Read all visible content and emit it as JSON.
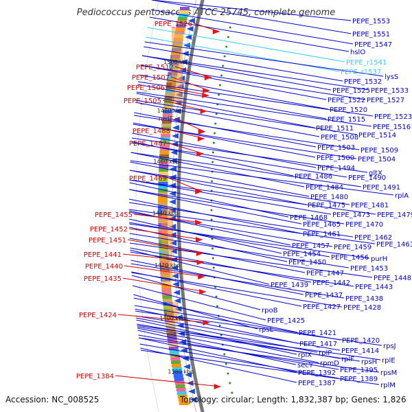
{
  "title": "Pediococcus pentosaceus ATCC 25745, complete genome",
  "footer": {
    "accession": "Accession: NC_008525",
    "topology": "Topology: circular; Length: 1,832,387 bp; Genes: 1,826"
  },
  "colors": {
    "forward_label": "#cc0000",
    "reverse_label": "#0000cc",
    "rna_label": "#33ccee",
    "backbone": "#777777",
    "tick": "#228822"
  },
  "scale_labels": [
    "1500 kbp",
    "1480 kbp",
    "1460 kbp",
    "1440 kbp",
    "1420 kbp",
    "1400 kbp",
    "1380 kbp"
  ],
  "left_labels": [
    "PEPE_1526",
    "PEPE_1512",
    "PEPE_1507",
    "PEPE_1506",
    "PEPE_1505",
    "nrdF",
    "PEPE_1488",
    "PEPE_1487",
    "PEPE_1469",
    "PEPE_1455",
    "PEPE_1452",
    "PEPE_1451",
    "PEPE_1441",
    "PEPE_1440",
    "PEPE_1435",
    "PEPE_1424",
    "PEPE_1384"
  ],
  "right_labels": [
    "PEPE_1553",
    "PEPE_1551",
    "PEPE_1547",
    "hslO",
    "PEPE_r1541",
    "PEPE_r1537",
    "lysS",
    "PEPE_1532",
    "PEPE_1525",
    "PEPE_1533",
    "PEPE_1522",
    "PEPE_1527",
    "PEPE_1520",
    "PEPE_1523",
    "PEPE_1515",
    "PEPE_1511",
    "PEPE_1516",
    "PEPE_1508",
    "PEPE_1514",
    "PEPE_1503",
    "PEPE_1509",
    "PEPE_1500",
    "PEPE_1504",
    "PEPE_1494",
    "gltX",
    "PEPE_1486",
    "PEPE_1490",
    "PEPE_1484",
    "PEPE_1491",
    "PEPE_1480",
    "rplA",
    "PEPE_1475",
    "PEPE_1481",
    "PEPE_1468",
    "PEPE_1473",
    "PEPE_1479",
    "PEPE_1465",
    "PEPE_1470",
    "PEPE_1461",
    "PEPE_1462",
    "PEPE_1457",
    "PEPE_1459",
    "PEPE_1463",
    "PEPE_1454",
    "PEPE_1456",
    "purH",
    "PEPE_1450",
    "PEPE_1453",
    "PEPE_1447",
    "PEPE_1448",
    "PEPE_1439",
    "PEPE_1442",
    "PEPE_1443",
    "PEPE_1437",
    "PEPE_1438",
    "PEPE_1427",
    "PEPE_1428",
    "rpoB",
    "PEPE_1425",
    "rpsL",
    "PEPE_1421",
    "PEPE_1420",
    "PEPE_1417",
    "PEPE_1414",
    "rpsJ",
    "rplX",
    "rplP",
    "secY",
    "rpmD",
    "rplF",
    "rpsH",
    "rplE",
    "PEPE_1392",
    "PEPE_1395",
    "rpsM",
    "PEPE_1387",
    "PEPE_1389",
    "rplM"
  ]
}
